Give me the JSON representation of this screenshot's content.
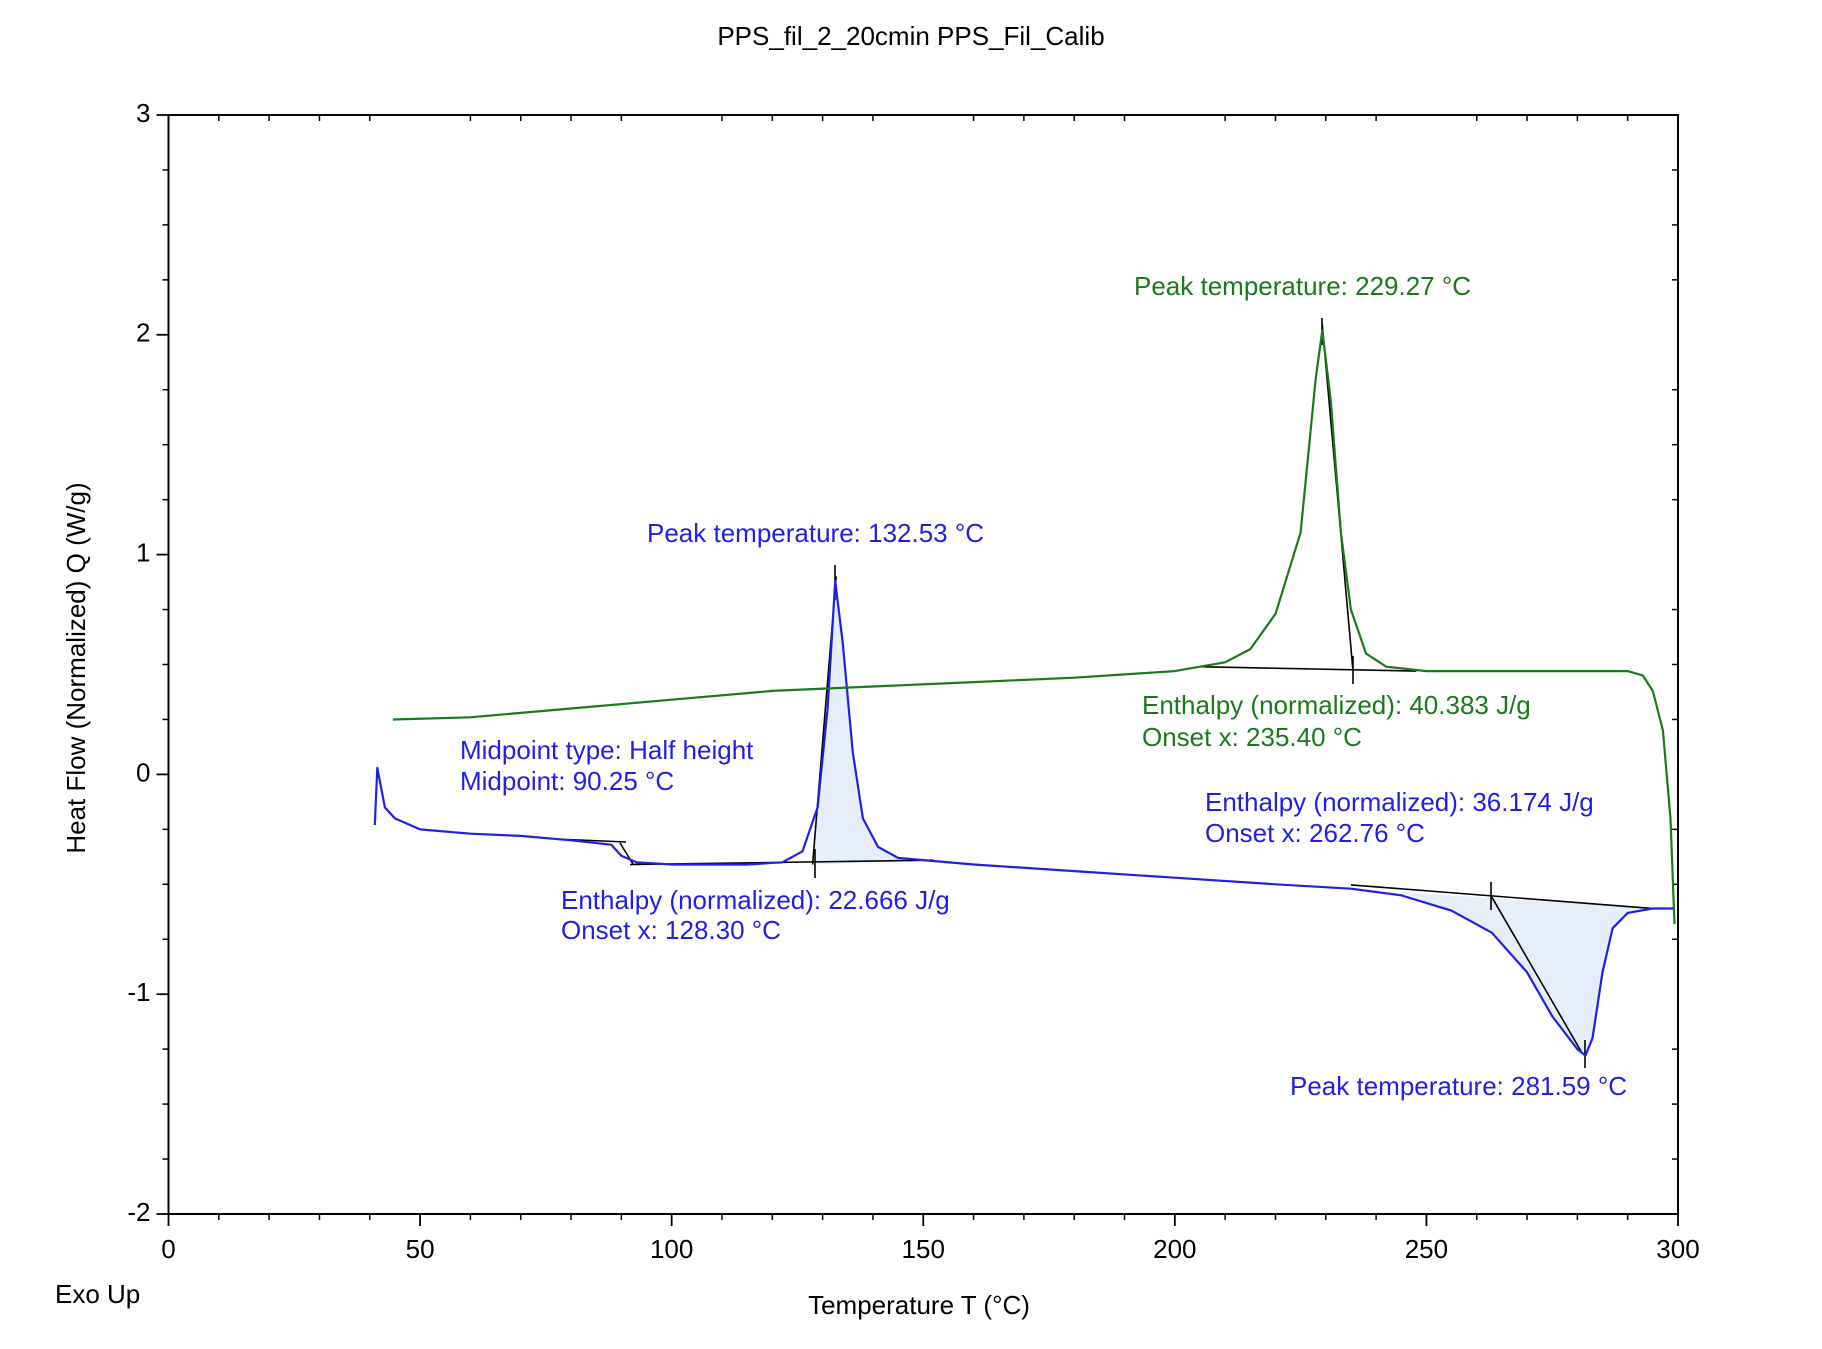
{
  "chart_data": {
    "type": "line",
    "title": "PPS_fil_2_20cmin PPS_Fil_Calib",
    "xlabel": "Temperature T (°C)",
    "ylabel": "Heat Flow (Normalized) Q (W/g)",
    "corner_note": "Exo Up",
    "xlim": [
      0,
      300
    ],
    "ylim": [
      -2,
      3
    ],
    "xticks": [
      0,
      50,
      100,
      150,
      200,
      250,
      300
    ],
    "yticks": [
      -2,
      -1,
      0,
      1,
      2,
      3
    ],
    "annotations": [
      "Peak temperature: 229.27 °C",
      "Peak temperature: 132.53 °C",
      "Midpoint type: Half height",
      "Midpoint: 90.25 °C",
      "Enthalpy (normalized): 40.383 J/g",
      "Onset x: 235.40 °C",
      "Enthalpy (normalized): 36.174 J/g",
      "Onset x: 262.76 °C",
      "Enthalpy (normalized): 22.666 J/g",
      "Onset x: 128.30 °C",
      "Peak temperature: 281.59 °C"
    ],
    "series": [
      {
        "color": "#1f1fe6",
        "x": [
          41,
          41.5,
          43,
          45,
          50,
          60,
          70,
          80,
          88,
          90,
          93,
          100,
          115,
          122,
          126,
          129,
          131,
          132.5,
          134,
          136,
          138,
          141,
          145,
          150,
          160,
          180,
          200,
          220,
          235,
          245,
          255,
          263,
          270,
          275,
          280,
          281.6,
          283,
          285,
          287,
          290,
          295,
          299
        ],
        "values": [
          -0.23,
          0.03,
          -0.15,
          -0.2,
          -0.25,
          -0.27,
          -0.28,
          -0.3,
          -0.32,
          -0.37,
          -0.4,
          -0.41,
          -0.41,
          -0.4,
          -0.35,
          -0.15,
          0.3,
          0.88,
          0.6,
          0.1,
          -0.2,
          -0.33,
          -0.38,
          -0.39,
          -0.41,
          -0.44,
          -0.47,
          -0.5,
          -0.52,
          -0.55,
          -0.62,
          -0.72,
          -0.9,
          -1.1,
          -1.25,
          -1.28,
          -1.2,
          -0.9,
          -0.7,
          -0.63,
          -0.61,
          -0.61
        ]
      },
      {
        "color": "#1a7a1a",
        "x": [
          44.6,
          60,
          80,
          100,
          120,
          140,
          160,
          180,
          200,
          210,
          215,
          220,
          225,
          228,
          229.3,
          231,
          233,
          235,
          238,
          242,
          250,
          270,
          290,
          293,
          295,
          297,
          298.5,
          299.3
        ],
        "values": [
          0.25,
          0.26,
          0.3,
          0.34,
          0.38,
          0.4,
          0.42,
          0.44,
          0.47,
          0.51,
          0.57,
          0.73,
          1.1,
          1.8,
          2.02,
          1.7,
          1.1,
          0.75,
          0.55,
          0.49,
          0.47,
          0.47,
          0.47,
          0.45,
          0.38,
          0.2,
          -0.2,
          -0.68
        ]
      }
    ]
  }
}
